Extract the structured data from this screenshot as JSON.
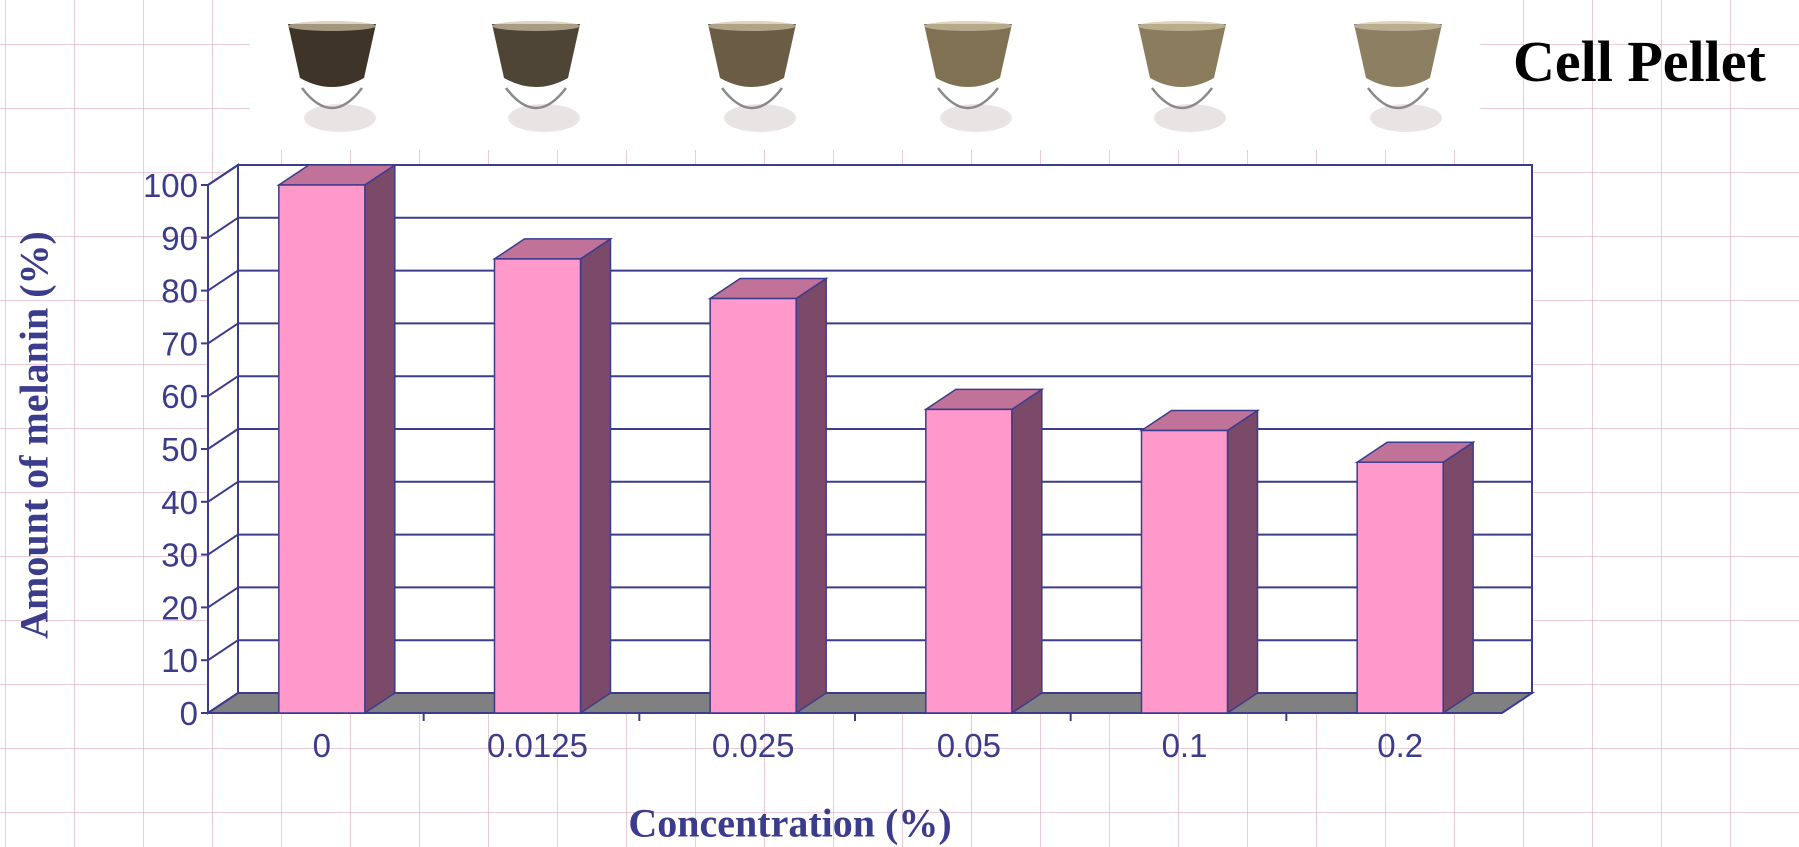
{
  "pellet_label": "Cell Pellet",
  "pellet_colors": [
    "#3e3428",
    "#4f4536",
    "#6a5c45",
    "#7f7152",
    "#8a7c5d",
    "#8d7f62"
  ],
  "colors": {
    "bar_front": "#ff99cc",
    "bar_side": "#7a4a68",
    "bar_top": "#c07299",
    "axis": "#3c3c8c",
    "floor": "#808080"
  },
  "chart_data": {
    "type": "bar",
    "categories": [
      "0",
      "0.0125",
      "0.025",
      "0.05",
      "0.1",
      "0.2"
    ],
    "values": [
      100,
      86,
      78.5,
      57.5,
      53.5,
      47.5
    ],
    "title": "",
    "xlabel": "Concentration (%)",
    "ylabel": "Amount of melanin (%)",
    "ylim": [
      0,
      100
    ],
    "yticks": [
      "0",
      "10",
      "20",
      "30",
      "40",
      "50",
      "60",
      "70",
      "80",
      "90",
      "100"
    ],
    "grid": true,
    "legend": "none",
    "style": "3d"
  }
}
